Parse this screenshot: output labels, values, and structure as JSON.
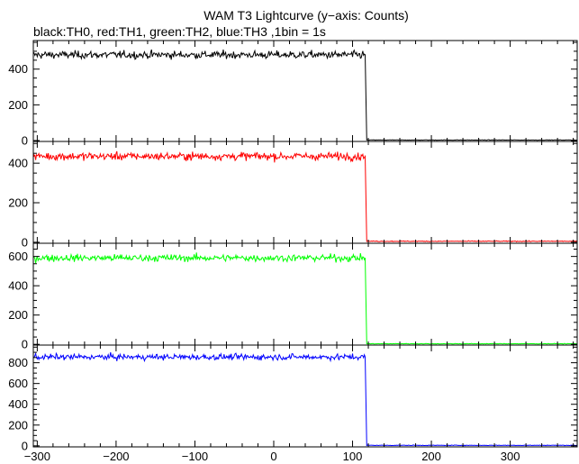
{
  "chart_data": {
    "type": "line",
    "title": "WAM T3 Lightcurve (y−axis: Counts)",
    "subtitle": "black:TH0, red:TH1, green:TH2, blue:TH3 ,1bin = 1s",
    "x_range": [
      -305,
      385
    ],
    "x_ticks": [
      -300,
      -200,
      -100,
      0,
      100,
      200,
      300
    ],
    "x_tick_labels": [
      "−300",
      "−200",
      "−100",
      "0",
      "100",
      "200",
      "300"
    ],
    "step_x": 117,
    "bin_seconds": 1,
    "panels": [
      {
        "series": "TH0",
        "color": "#000000",
        "ylim": [
          -5,
          560
        ],
        "yticks": [
          0,
          200,
          400
        ],
        "before_mean": 480,
        "before_noise": 15,
        "after_mean": 3,
        "after_noise": 1
      },
      {
        "series": "TH1",
        "color": "#ff0000",
        "ylim": [
          -5,
          510
        ],
        "yticks": [
          0,
          200,
          400
        ],
        "before_mean": 435,
        "before_noise": 14,
        "after_mean": 5,
        "after_noise": 1.5
      },
      {
        "series": "TH2",
        "color": "#00ff00",
        "ylim": [
          -5,
          690
        ],
        "yticks": [
          0,
          200,
          400,
          600
        ],
        "before_mean": 590,
        "before_noise": 17,
        "after_mean": 4,
        "after_noise": 1.5
      },
      {
        "series": "TH3",
        "color": "#0000ff",
        "ylim": [
          -10,
          970
        ],
        "yticks": [
          0,
          200,
          400,
          600,
          800
        ],
        "before_mean": 855,
        "before_noise": 20,
        "after_mean": 5,
        "after_noise": 2
      }
    ]
  }
}
